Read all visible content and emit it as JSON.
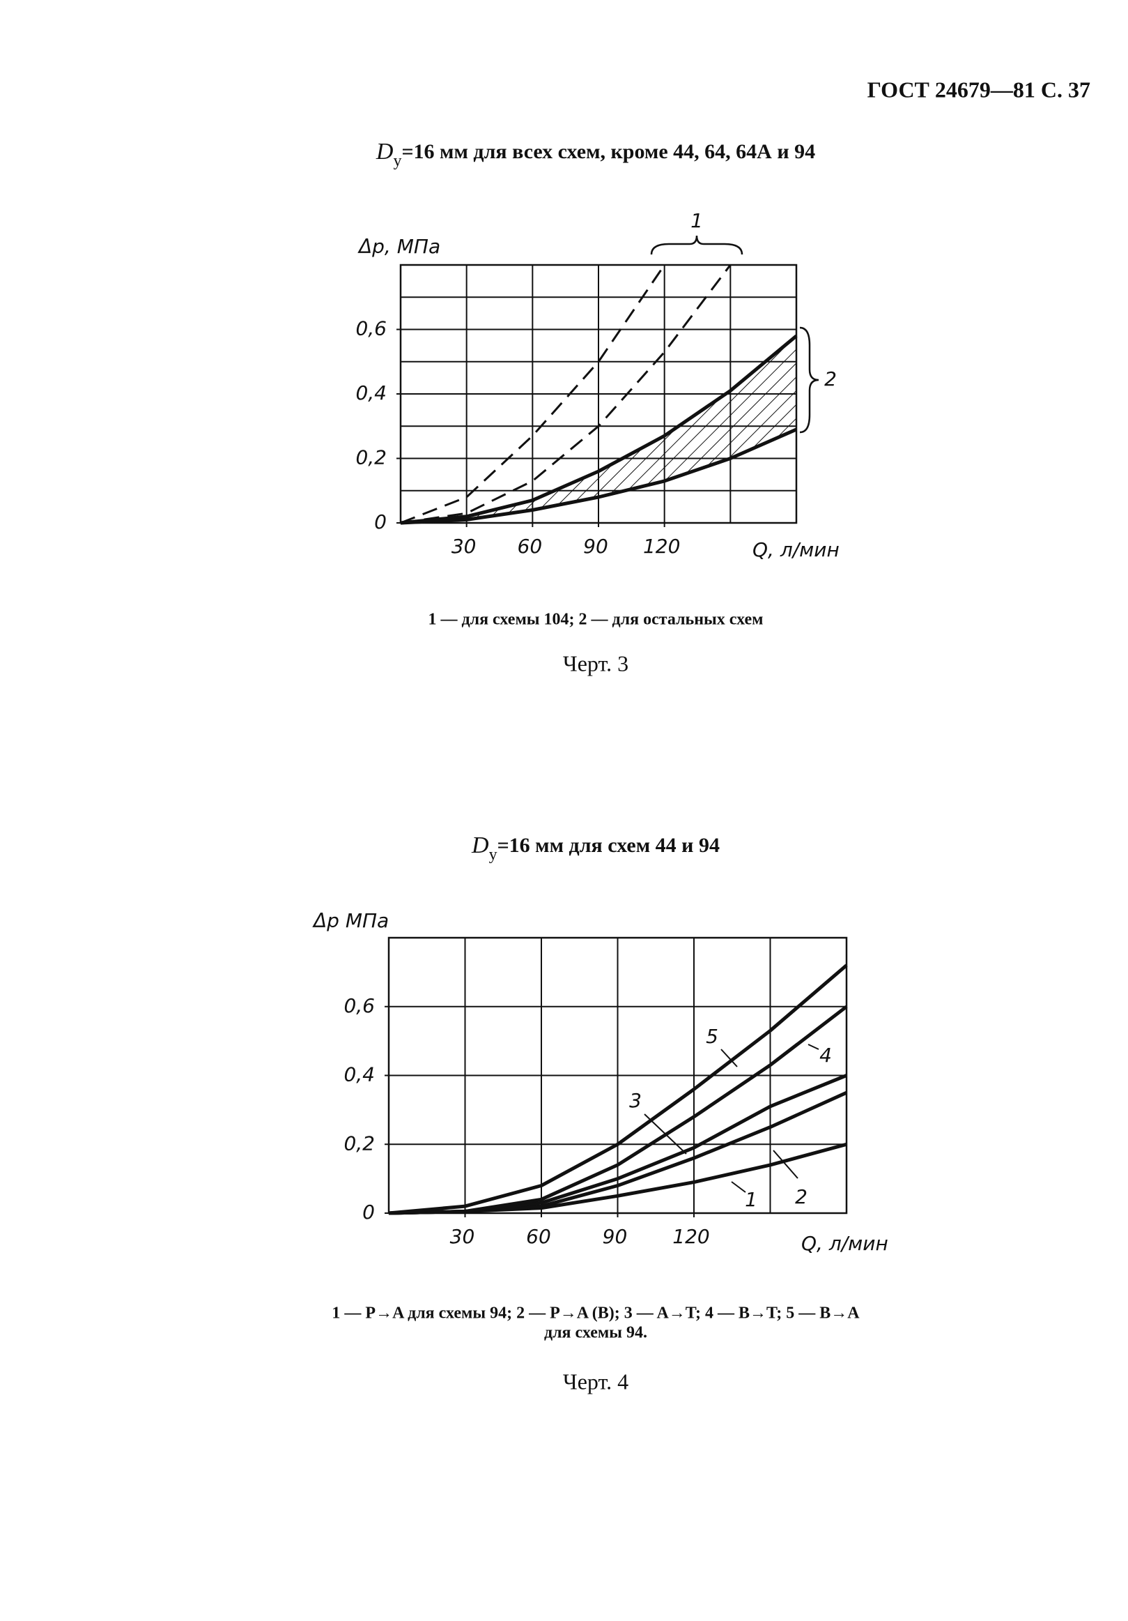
{
  "header": {
    "title": "ГОСТ 24679—81 С. 37"
  },
  "chart_data": [
    {
      "type": "line",
      "title_symbol": "D",
      "title_subscript": "у",
      "title": "=16 мм для всех схем, кроме 44, 64, 64А и 94",
      "y_label": "Δp, МПа",
      "x_label": "Q, л/мин",
      "x": [
        0,
        30,
        60,
        90,
        120,
        150,
        180
      ],
      "series": [
        {
          "style": "dashed",
          "values": [
            0,
            0.08,
            0.27,
            0.5,
            0.8,
            null,
            null
          ]
        },
        {
          "style": "dashed",
          "values": [
            0,
            0.03,
            0.13,
            0.3,
            0.53,
            0.8,
            null
          ]
        },
        {
          "style": "solid",
          "values": [
            0,
            0.02,
            0.07,
            0.16,
            0.27,
            0.41,
            0.58
          ]
        },
        {
          "style": "solid",
          "values": [
            0,
            0.01,
            0.04,
            0.08,
            0.13,
            0.2,
            0.29
          ]
        }
      ],
      "xlim": [
        0,
        180
      ],
      "ylim": [
        0,
        0.8
      ],
      "xticks": [
        30,
        60,
        90,
        120
      ],
      "yticks": [
        0,
        {
          "value": 0.2,
          "label": "0,2"
        },
        {
          "value": 0.4,
          "label": "0,4"
        },
        {
          "value": 0.6,
          "label": "0,6"
        }
      ],
      "xgrid": [
        30,
        60,
        90,
        120,
        150
      ],
      "ygrid": [
        0.1,
        0.2,
        0.3,
        0.4,
        0.5,
        0.6,
        0.7
      ],
      "hatched_band": true,
      "annotations": [
        "1",
        "2"
      ],
      "legend_text": [
        "1 — для схемы 104; 2 — для остальных схем"
      ],
      "caption": "Черт. 3"
    },
    {
      "type": "line",
      "title_symbol": "D",
      "title_subscript": "у",
      "title": "=16 мм для схем 44 и 94",
      "y_label": "Δp МПа",
      "x_label": "Q, л/мин",
      "x": [
        0,
        30,
        60,
        90,
        120,
        150,
        180
      ],
      "series": [
        {
          "name": "1",
          "style": "solid",
          "values": [
            0,
            0.005,
            0.015,
            0.05,
            0.09,
            0.14,
            0.2
          ]
        },
        {
          "name": "2",
          "style": "solid",
          "values": [
            0,
            0.005,
            0.02,
            0.08,
            0.16,
            0.25,
            0.35
          ]
        },
        {
          "name": "3",
          "style": "solid",
          "values": [
            0,
            0.005,
            0.03,
            0.1,
            0.19,
            0.31,
            0.4
          ]
        },
        {
          "name": "4",
          "style": "solid",
          "values": [
            0,
            0.005,
            0.04,
            0.14,
            0.28,
            0.43,
            0.6
          ]
        },
        {
          "name": "5",
          "style": "solid",
          "values": [
            0,
            0.02,
            0.08,
            0.2,
            0.36,
            0.53,
            0.72
          ]
        }
      ],
      "xlim": [
        0,
        180
      ],
      "ylim": [
        0,
        0.8
      ],
      "xticks": [
        30,
        60,
        90,
        120
      ],
      "yticks": [
        0,
        {
          "value": 0.2,
          "label": "0,2"
        },
        {
          "value": 0.4,
          "label": "0,4"
        },
        {
          "value": 0.6,
          "label": "0,6"
        }
      ],
      "xgrid": [
        30,
        60,
        90,
        120,
        150
      ],
      "ygrid": [
        0.2,
        0.4,
        0.6
      ],
      "hatched_band": false,
      "legend_text": [
        "1 — P→A для схемы 94; 2 — P→A (B); 3 — A→T; 4 — B→T; 5 — B→A",
        "для схемы 94."
      ],
      "caption": "Черт. 4"
    }
  ]
}
